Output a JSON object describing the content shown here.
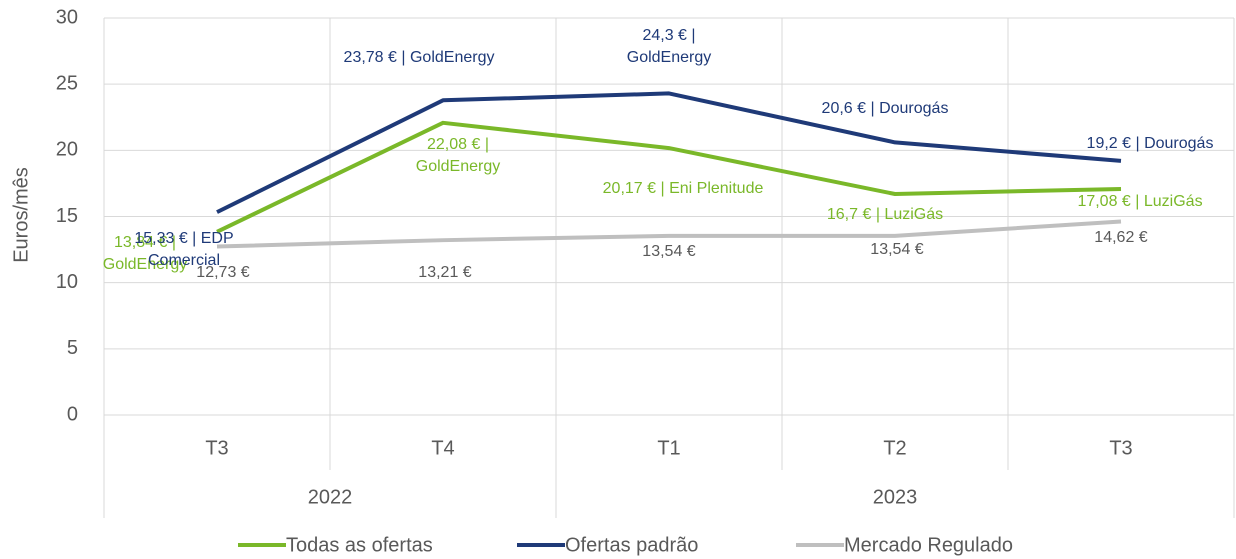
{
  "chart_data": {
    "type": "line",
    "y_label": "Euros/mês",
    "categories": [
      "T3",
      "T4",
      "T1",
      "T2",
      "T3"
    ],
    "year_groups": [
      {
        "label": "2022",
        "count": 2
      },
      {
        "label": "2023",
        "count": 3
      }
    ],
    "series": [
      {
        "name": "Todas as ofertas",
        "color": "#7ab829",
        "values": [
          13.84,
          22.08,
          20.17,
          16.7,
          17.08
        ],
        "value_labels": [
          "13,84 € | GoldEnergy",
          "22,08 € | GoldEnergy",
          "20,17 € | Eni Plenitude",
          "16,7 € | LuziGás",
          "17,08 € | LuziGás"
        ]
      },
      {
        "name": "Ofertas padrão",
        "color": "#1f3a78",
        "values": [
          15.33,
          23.78,
          24.3,
          20.6,
          19.2
        ],
        "value_labels": [
          "15,33 € | EDP Comercial",
          "23,78 € | GoldEnergy",
          "24,3 € | GoldEnergy",
          "20,6 € | Dourogás",
          "19,2 € | Dourogás"
        ]
      },
      {
        "name": "Mercado Regulado",
        "color": "#bfbfbf",
        "values": [
          12.73,
          13.21,
          13.54,
          13.54,
          14.62
        ],
        "value_labels": [
          "12,73 €",
          "13,21 €",
          "13,54 €",
          "13,54 €",
          "14,62 €"
        ]
      }
    ],
    "ylim": [
      0,
      30
    ],
    "yticks": [
      0,
      5,
      10,
      15,
      20,
      25,
      30
    ],
    "grid": true,
    "legend": "bottom"
  }
}
